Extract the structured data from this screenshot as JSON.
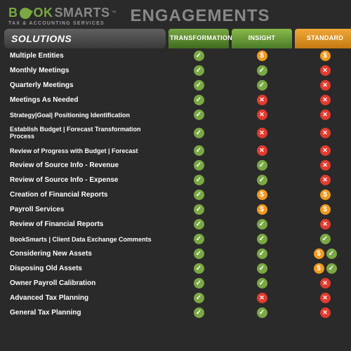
{
  "logo": {
    "part1": "B",
    "part2": "OK",
    "part3": "SMARTS",
    "tm": "™",
    "tagline": "TAX & ACCOUNTING SERVICES"
  },
  "heading": "ENGAGEMENTS",
  "solutions_header": "SOLUTIONS",
  "columns": [
    {
      "label": "TRANSFORMATION",
      "gradient_from": "#7aa843",
      "gradient_to": "#3e6b1f"
    },
    {
      "label": "INSIGHT",
      "gradient_from": "#8ab94a",
      "gradient_to": "#4a7a28"
    },
    {
      "label": "STANDARD",
      "gradient_from": "#f0a838",
      "gradient_to": "#c67a12"
    }
  ],
  "icon_colors": {
    "check": "#7aa843",
    "cross": "#e33b2e",
    "dollar": "#f09a1e"
  },
  "rows": [
    {
      "label": "Multiple Entities",
      "cells": [
        [
          "check"
        ],
        [
          "dollar"
        ],
        [
          "dollar"
        ]
      ]
    },
    {
      "label": "Monthly Meetings",
      "cells": [
        [
          "check"
        ],
        [
          "check"
        ],
        [
          "cross"
        ]
      ]
    },
    {
      "label": "Quarterly Meetings",
      "cells": [
        [
          "check"
        ],
        [
          "check"
        ],
        [
          "cross"
        ]
      ]
    },
    {
      "label": "Meetings As Needed",
      "cells": [
        [
          "check"
        ],
        [
          "cross"
        ],
        [
          "cross"
        ]
      ]
    },
    {
      "label": "Strategy|Goal| Positioning Identification",
      "small": true,
      "cells": [
        [
          "check"
        ],
        [
          "cross"
        ],
        [
          "cross"
        ]
      ]
    },
    {
      "label": "Establish Budget | Forecast Transformation Process",
      "small": true,
      "cells": [
        [
          "check"
        ],
        [
          "cross"
        ],
        [
          "cross"
        ]
      ]
    },
    {
      "label": "Review of Progress with Budget | Forecast",
      "small": true,
      "cells": [
        [
          "check"
        ],
        [
          "cross"
        ],
        [
          "cross"
        ]
      ]
    },
    {
      "label": "Review of Source Info - Revenue",
      "cells": [
        [
          "check"
        ],
        [
          "check"
        ],
        [
          "cross"
        ]
      ]
    },
    {
      "label": "Review of Source Info - Expense",
      "cells": [
        [
          "check"
        ],
        [
          "check"
        ],
        [
          "cross"
        ]
      ]
    },
    {
      "label": "Creation of Financial Reports",
      "cells": [
        [
          "check"
        ],
        [
          "dollar"
        ],
        [
          "dollar"
        ]
      ]
    },
    {
      "label": "Payroll Services",
      "cells": [
        [
          "check"
        ],
        [
          "dollar"
        ],
        [
          "dollar"
        ]
      ]
    },
    {
      "label": "Review of Financial Reports",
      "cells": [
        [
          "check"
        ],
        [
          "check"
        ],
        [
          "cross"
        ]
      ]
    },
    {
      "label": "BookSmarts | Client Data Exchange Comments",
      "small": true,
      "cells": [
        [
          "check"
        ],
        [
          "check"
        ],
        [
          "check"
        ]
      ]
    },
    {
      "label": "Considering New Assets",
      "cells": [
        [
          "check"
        ],
        [
          "check"
        ],
        [
          "dollar",
          "check"
        ]
      ]
    },
    {
      "label": "Disposing Old Assets",
      "cells": [
        [
          "check"
        ],
        [
          "check"
        ],
        [
          "dollar",
          "check"
        ]
      ]
    },
    {
      "label": "Owner Payroll Calibration",
      "cells": [
        [
          "check"
        ],
        [
          "check"
        ],
        [
          "cross"
        ]
      ]
    },
    {
      "label": "Advanced Tax Planning",
      "cells": [
        [
          "check"
        ],
        [
          "cross"
        ],
        [
          "cross"
        ]
      ]
    },
    {
      "label": "General Tax Planning",
      "cells": [
        [
          "check"
        ],
        [
          "check"
        ],
        [
          "cross"
        ]
      ]
    }
  ]
}
